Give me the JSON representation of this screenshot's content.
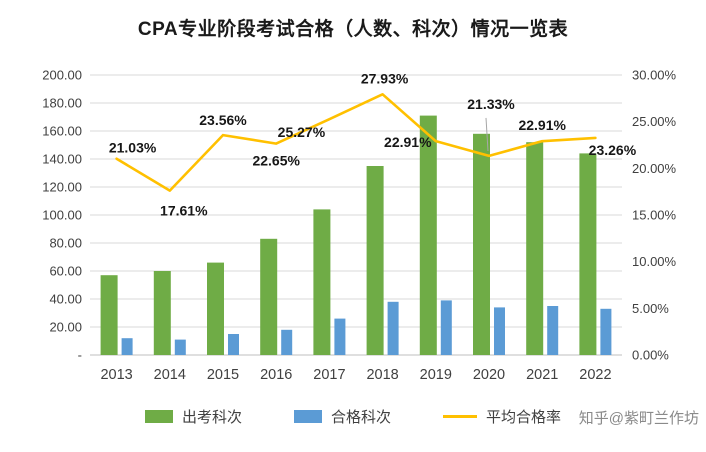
{
  "title": "CPA专业阶段考试合格（人数、科次）情况一览表",
  "watermark": "知乎@紫町兰作坊",
  "legend": [
    {
      "label": "出考科次",
      "color": "#6FAC46",
      "type": "bar"
    },
    {
      "label": "合格科次",
      "color": "#5B9BD5",
      "type": "bar"
    },
    {
      "label": "平均合格率",
      "color": "#FFC000",
      "type": "line"
    }
  ],
  "chart_data": {
    "type": "bar",
    "subtype": "combo-bar-line",
    "title": "CPA专业阶段考试合格（人数、科次）情况一览表",
    "categories": [
      "2013",
      "2014",
      "2015",
      "2016",
      "2017",
      "2018",
      "2019",
      "2020",
      "2021",
      "2022"
    ],
    "series": [
      {
        "name": "出考科次",
        "type": "bar",
        "axis": "left",
        "color": "#6FAC46",
        "values": [
          57,
          60,
          66,
          83,
          104,
          135,
          171,
          158,
          152,
          144
        ]
      },
      {
        "name": "合格科次",
        "type": "bar",
        "axis": "left",
        "color": "#5B9BD5",
        "values": [
          12,
          11,
          15,
          18,
          26,
          38,
          39,
          34,
          35,
          33
        ]
      },
      {
        "name": "平均合格率",
        "type": "line",
        "axis": "right",
        "color": "#FFC000",
        "values": [
          21.03,
          17.61,
          23.56,
          22.65,
          25.27,
          27.93,
          22.91,
          21.33,
          22.91,
          23.26
        ],
        "labels": [
          "21.03%",
          "17.61%",
          "23.56%",
          "22.65%",
          "25.27%",
          "27.93%",
          "22.91%",
          "21.33%",
          "22.91%",
          "23.26%"
        ]
      }
    ],
    "left_axis": {
      "min": 0,
      "max": 200,
      "step": 20,
      "ticks": [
        "-",
        "20.00",
        "40.00",
        "60.00",
        "80.00",
        "100.00",
        "120.00",
        "140.00",
        "160.00",
        "180.00",
        "200.00"
      ]
    },
    "right_axis": {
      "min": 0,
      "max": 30,
      "step": 5,
      "ticks": [
        "0.00%",
        "5.00%",
        "10.00%",
        "15.00%",
        "20.00%",
        "25.00%",
        "30.00%"
      ]
    },
    "grid": true,
    "legend_position": "bottom"
  }
}
